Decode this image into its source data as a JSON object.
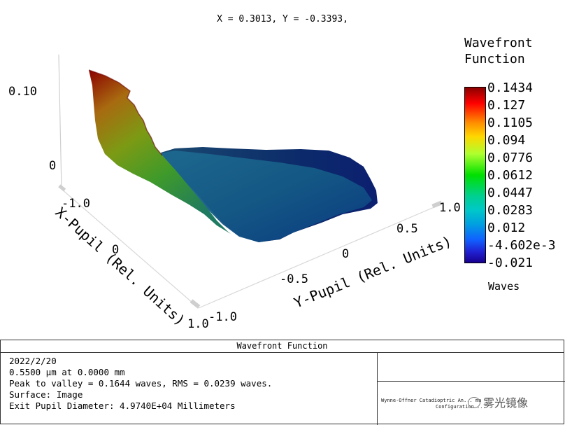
{
  "cursor_readout": "X = 0.3013, Y = -0.3393,",
  "colorbar": {
    "title_line1": "Wavefront",
    "title_line2": "Function",
    "ticks": [
      "0.1434",
      "0.127",
      "0.1105",
      "0.094",
      "0.0776",
      "0.0612",
      "0.0447",
      "0.0283",
      "0.012",
      "-4.602e-3",
      "-0.021"
    ],
    "units": "Waves"
  },
  "chart_data": {
    "type": "surface",
    "title": "Wavefront Function",
    "x_axis": {
      "label": "X-Pupil (Rel. Units)",
      "ticks": [
        "-1.0",
        "0",
        "1.0"
      ],
      "range": [
        -1.0,
        1.0
      ]
    },
    "y_axis": {
      "label": "Y-Pupil (Rel. Units)",
      "ticks": [
        "-1.0",
        "-0.5",
        "0",
        "0.5",
        "1.0"
      ],
      "range": [
        -1.0,
        1.0
      ]
    },
    "z_axis": {
      "ticks": [
        "0",
        "0.10"
      ],
      "range": [
        -0.021,
        0.1434
      ]
    },
    "z_min": -0.021,
    "z_max": 0.1434,
    "colormap": "rainbow"
  },
  "footer": {
    "title": "Wavefront Function",
    "date": "2022/2/20",
    "wavelength": "0.5500 µm at 0.0000 mm",
    "ptv": "Peak to valley = 0.1644 waves, RMS = 0.0239 waves.",
    "surface": "Surface: Image",
    "epd": "Exit Pupil Diameter: 4.9740E+04 Millimeters",
    "system_line1": "Wynne-Offner Catadioptric An... ma",
    "system_line2": "Configuration ..."
  },
  "watermark": "雾光镜像",
  "colors": {
    "surface_high": "#8b0000",
    "surface_mid": "#4a9a2a",
    "surface_low": "#1a5a8a"
  }
}
